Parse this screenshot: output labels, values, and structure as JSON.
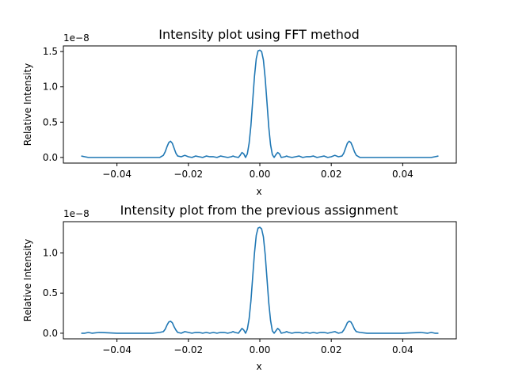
{
  "chart_data": [
    {
      "type": "line",
      "title": "Intensity plot using FFT method",
      "xlabel": "x",
      "ylabel": "Relative Intensity",
      "offset_text": "1e−8",
      "xlim": [
        -0.055,
        0.055
      ],
      "ylim": [
        -0.08,
        1.58
      ],
      "xticks": [
        -0.04,
        -0.02,
        0.0,
        0.02,
        0.04
      ],
      "xtick_labels": [
        "−0.04",
        "−0.02",
        "0.00",
        "0.02",
        "0.04"
      ],
      "yticks": [
        0.0,
        0.5,
        1.0,
        1.5
      ],
      "ytick_labels": [
        "0.0",
        "0.5",
        "1.0",
        "1.5"
      ],
      "grid": false,
      "series": [
        {
          "color": "#1f77b4",
          "x": [
            -0.05,
            -0.049,
            -0.048,
            -0.047,
            -0.045,
            -0.04,
            -0.035,
            -0.03,
            -0.028,
            -0.027,
            -0.0265,
            -0.026,
            -0.0255,
            -0.025,
            -0.0245,
            -0.024,
            -0.0235,
            -0.023,
            -0.022,
            -0.021,
            -0.02,
            -0.019,
            -0.018,
            -0.017,
            -0.016,
            -0.015,
            -0.014,
            -0.013,
            -0.012,
            -0.011,
            -0.01,
            -0.009,
            -0.008,
            -0.0075,
            -0.007,
            -0.006,
            -0.0055,
            -0.005,
            -0.0045,
            -0.004,
            -0.0035,
            -0.003,
            -0.0025,
            -0.002,
            -0.0015,
            -0.001,
            -0.0005,
            0.0,
            0.0005,
            0.001,
            0.0015,
            0.002,
            0.0025,
            0.003,
            0.0035,
            0.004,
            0.0045,
            0.005,
            0.0055,
            0.006,
            0.007,
            0.0075,
            0.008,
            0.009,
            0.01,
            0.011,
            0.012,
            0.013,
            0.014,
            0.015,
            0.016,
            0.017,
            0.018,
            0.019,
            0.02,
            0.021,
            0.022,
            0.023,
            0.0235,
            0.024,
            0.0245,
            0.025,
            0.0255,
            0.026,
            0.0265,
            0.027,
            0.028,
            0.03,
            0.035,
            0.04,
            0.045,
            0.047,
            0.048,
            0.049,
            0.05
          ],
          "y": [
            0.02,
            0.01,
            0.0,
            0.0,
            0.0,
            0.0,
            0.0,
            0.0,
            0.0,
            0.03,
            0.08,
            0.15,
            0.21,
            0.23,
            0.2,
            0.13,
            0.06,
            0.02,
            0.01,
            0.03,
            0.01,
            0.0,
            0.02,
            0.01,
            0.0,
            0.02,
            0.01,
            0.01,
            0.0,
            0.02,
            0.01,
            0.0,
            0.01,
            0.02,
            0.01,
            0.0,
            0.03,
            0.07,
            0.05,
            0.0,
            0.05,
            0.2,
            0.45,
            0.8,
            1.15,
            1.4,
            1.51,
            1.52,
            1.5,
            1.38,
            1.12,
            0.78,
            0.43,
            0.18,
            0.04,
            0.0,
            0.04,
            0.07,
            0.05,
            0.0,
            0.01,
            0.02,
            0.01,
            0.0,
            0.01,
            0.02,
            0.0,
            0.01,
            0.01,
            0.02,
            0.0,
            0.01,
            0.02,
            0.0,
            0.01,
            0.03,
            0.01,
            0.02,
            0.06,
            0.13,
            0.2,
            0.23,
            0.21,
            0.15,
            0.08,
            0.03,
            0.0,
            0.0,
            0.0,
            0.0,
            0.0,
            0.0,
            0.0,
            0.01,
            0.02
          ]
        }
      ]
    },
    {
      "type": "line",
      "title": "Intensity plot from the previous assignment",
      "xlabel": "x",
      "ylabel": "Relative Intensity",
      "offset_text": "1e−8",
      "xlim": [
        -0.055,
        0.055
      ],
      "ylim": [
        -0.07,
        1.39
      ],
      "xticks": [
        -0.04,
        -0.02,
        0.0,
        0.02,
        0.04
      ],
      "xtick_labels": [
        "−0.04",
        "−0.02",
        "0.00",
        "0.02",
        "0.04"
      ],
      "yticks": [
        0.0,
        0.5,
        1.0
      ],
      "ytick_labels": [
        "0.0",
        "0.5",
        "1.0"
      ],
      "grid": false,
      "series": [
        {
          "color": "#1f77b4",
          "x": [
            -0.05,
            -0.049,
            -0.048,
            -0.047,
            -0.045,
            -0.04,
            -0.035,
            -0.03,
            -0.028,
            -0.027,
            -0.0265,
            -0.026,
            -0.0255,
            -0.025,
            -0.0245,
            -0.024,
            -0.0235,
            -0.023,
            -0.022,
            -0.021,
            -0.02,
            -0.019,
            -0.018,
            -0.017,
            -0.016,
            -0.015,
            -0.014,
            -0.013,
            -0.012,
            -0.011,
            -0.01,
            -0.009,
            -0.008,
            -0.0075,
            -0.007,
            -0.006,
            -0.0055,
            -0.005,
            -0.0045,
            -0.004,
            -0.0035,
            -0.003,
            -0.0025,
            -0.002,
            -0.0015,
            -0.001,
            -0.0005,
            0.0,
            0.0005,
            0.001,
            0.0015,
            0.002,
            0.0025,
            0.003,
            0.0035,
            0.004,
            0.0045,
            0.005,
            0.0055,
            0.006,
            0.007,
            0.0075,
            0.008,
            0.009,
            0.01,
            0.011,
            0.012,
            0.013,
            0.014,
            0.015,
            0.016,
            0.017,
            0.018,
            0.019,
            0.02,
            0.021,
            0.022,
            0.023,
            0.0235,
            0.024,
            0.0245,
            0.025,
            0.0255,
            0.026,
            0.0265,
            0.027,
            0.028,
            0.03,
            0.035,
            0.04,
            0.045,
            0.047,
            0.048,
            0.049,
            0.05
          ],
          "y": [
            0.0,
            0.0,
            0.01,
            0.0,
            0.01,
            0.0,
            0.0,
            0.0,
            0.01,
            0.02,
            0.05,
            0.1,
            0.14,
            0.15,
            0.13,
            0.08,
            0.04,
            0.01,
            0.0,
            0.02,
            0.01,
            0.0,
            0.01,
            0.01,
            0.0,
            0.01,
            0.0,
            0.01,
            0.0,
            0.01,
            0.01,
            0.0,
            0.01,
            0.02,
            0.01,
            0.0,
            0.03,
            0.06,
            0.04,
            0.0,
            0.05,
            0.18,
            0.4,
            0.7,
            1.0,
            1.22,
            1.31,
            1.32,
            1.3,
            1.2,
            0.98,
            0.68,
            0.38,
            0.16,
            0.03,
            0.0,
            0.03,
            0.06,
            0.04,
            0.0,
            0.01,
            0.02,
            0.01,
            0.0,
            0.01,
            0.01,
            0.0,
            0.01,
            0.0,
            0.01,
            0.0,
            0.01,
            0.01,
            0.0,
            0.01,
            0.02,
            0.0,
            0.01,
            0.04,
            0.08,
            0.13,
            0.15,
            0.14,
            0.1,
            0.05,
            0.02,
            0.01,
            0.0,
            0.0,
            0.0,
            0.01,
            0.0,
            0.01,
            0.0,
            0.0
          ]
        }
      ]
    }
  ]
}
